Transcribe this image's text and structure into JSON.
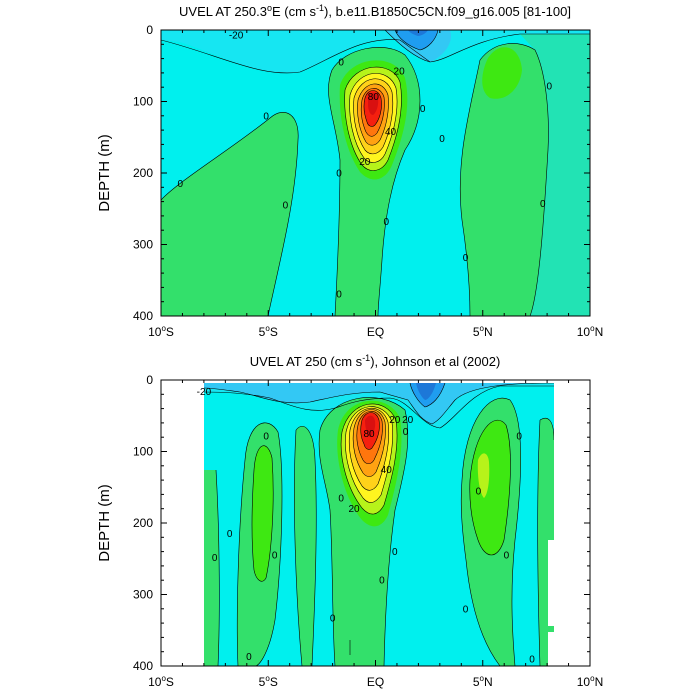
{
  "colors": {
    "cyan": "#00f0ee",
    "lightcyan": "#16e6f2",
    "skyblue": "#33c8f4",
    "blue": "#1f9df0",
    "deepblue": "#1d78d8",
    "teal": "#22e3b4",
    "green": "#33e06b",
    "brightgreen": "#3ee812",
    "lime": "#b7f31a",
    "yellow": "#fff51f",
    "yorange": "#ffd21a",
    "orange": "#ffa212",
    "dorange": "#ff760d",
    "red": "#f5200f",
    "dred": "#d91010"
  },
  "chart_data": [
    {
      "type": "heatmap",
      "subtype": "filled contour",
      "title_pre": "UVEL AT 250.3",
      "title_sup1": "o",
      "title_mid": "E (cm s",
      "title_sup2": "-1",
      "title_post": "), b.e11.B1850C5CN.f09_g16.005 [81-100]",
      "ylabel": "DEPTH (m)",
      "xticks": [
        {
          "pre": "10",
          "sup": "o",
          "post": "S"
        },
        {
          "pre": "5",
          "sup": "o",
          "post": "S"
        },
        {
          "pre": "EQ",
          "sup": "",
          "post": ""
        },
        {
          "pre": "5",
          "sup": "o",
          "post": "N"
        },
        {
          "pre": "10",
          "sup": "o",
          "post": "N"
        }
      ],
      "xtick_values": [
        -10,
        -5,
        0,
        5,
        10
      ],
      "yticks": [
        "0",
        "100",
        "200",
        "300",
        "400"
      ],
      "ytick_values": [
        0,
        100,
        200,
        300,
        400
      ],
      "xlim": [
        -10,
        10
      ],
      "ylim": [
        400,
        0
      ],
      "contour_interval": 10,
      "max_value_approx": 90,
      "max_location": {
        "lat": 0,
        "depth_m": 95
      },
      "contour_labels": [
        {
          "text": "-20",
          "lat": -6.5,
          "depth": 7
        },
        {
          "text": "0",
          "lat": -9.1,
          "depth": 215
        },
        {
          "text": "0",
          "lat": -5.1,
          "depth": 120
        },
        {
          "text": "0",
          "lat": -4.2,
          "depth": 245
        },
        {
          "text": "0",
          "lat": -1.6,
          "depth": 45
        },
        {
          "text": "20",
          "lat": 1.1,
          "depth": 57
        },
        {
          "text": "80",
          "lat": -0.1,
          "depth": 93
        },
        {
          "text": "40",
          "lat": 0.7,
          "depth": 142
        },
        {
          "text": "20",
          "lat": -0.5,
          "depth": 184
        },
        {
          "text": "0",
          "lat": -1.7,
          "depth": 200
        },
        {
          "text": "0",
          "lat": 2.2,
          "depth": 110
        },
        {
          "text": "0",
          "lat": 3.1,
          "depth": 152
        },
        {
          "text": "0",
          "lat": 0.5,
          "depth": 268
        },
        {
          "text": "0",
          "lat": 4.2,
          "depth": 318
        },
        {
          "text": "0",
          "lat": -1.7,
          "depth": 369
        },
        {
          "text": "0",
          "lat": 7.8,
          "depth": 243
        },
        {
          "text": "0",
          "lat": 8.1,
          "depth": 78
        }
      ]
    },
    {
      "type": "heatmap",
      "subtype": "filled contour",
      "title_pre": "UVEL AT 250 (cm s",
      "title_sup1": "",
      "title_mid": "",
      "title_sup2": "-1",
      "title_post": "), Johnson et al (2002)",
      "ylabel": "DEPTH (m)",
      "xticks": [
        {
          "pre": "10",
          "sup": "o",
          "post": "S"
        },
        {
          "pre": "5",
          "sup": "o",
          "post": "S"
        },
        {
          "pre": "EQ",
          "sup": "",
          "post": ""
        },
        {
          "pre": "5",
          "sup": "o",
          "post": "N"
        },
        {
          "pre": "10",
          "sup": "o",
          "post": "N"
        }
      ],
      "xtick_values": [
        -10,
        -5,
        0,
        5,
        10
      ],
      "yticks": [
        "0",
        "100",
        "200",
        "300",
        "400"
      ],
      "ytick_values": [
        0,
        100,
        200,
        300,
        400
      ],
      "xlim": [
        -10,
        10
      ],
      "ylim": [
        400,
        0
      ],
      "data_lat_range": [
        -8,
        8.3
      ],
      "data_depth_range": [
        5,
        400
      ],
      "contour_interval": 10,
      "max_value_approx": 90,
      "max_location": {
        "lat": -0.3,
        "depth_m": 72
      },
      "contour_labels": [
        {
          "text": "-20",
          "lat": -8.0,
          "depth": 16
        },
        {
          "text": "0",
          "lat": -5.1,
          "depth": 78
        },
        {
          "text": "0",
          "lat": -6.8,
          "depth": 215
        },
        {
          "text": "0",
          "lat": -7.5,
          "depth": 248
        },
        {
          "text": "0",
          "lat": -4.7,
          "depth": 245
        },
        {
          "text": "0",
          "lat": -5.9,
          "depth": 387
        },
        {
          "text": "0",
          "lat": -1.6,
          "depth": 165
        },
        {
          "text": "0",
          "lat": -2.0,
          "depth": 333
        },
        {
          "text": "20",
          "lat": -1.0,
          "depth": 180
        },
        {
          "text": "80",
          "lat": -0.3,
          "depth": 75
        },
        {
          "text": "20",
          "lat": 0.9,
          "depth": 55
        },
        {
          "text": "20",
          "lat": 1.5,
          "depth": 55
        },
        {
          "text": "40",
          "lat": 0.5,
          "depth": 125
        },
        {
          "text": "0",
          "lat": 1.4,
          "depth": 72
        },
        {
          "text": "0",
          "lat": 0.9,
          "depth": 240
        },
        {
          "text": "0",
          "lat": 0.3,
          "depth": 280
        },
        {
          "text": "0",
          "lat": 4.8,
          "depth": 155
        },
        {
          "text": "0",
          "lat": 4.2,
          "depth": 320
        },
        {
          "text": "0",
          "lat": 6.7,
          "depth": 78
        },
        {
          "text": "0",
          "lat": 6.1,
          "depth": 245
        },
        {
          "text": "0",
          "lat": 7.3,
          "depth": 390
        }
      ]
    }
  ]
}
